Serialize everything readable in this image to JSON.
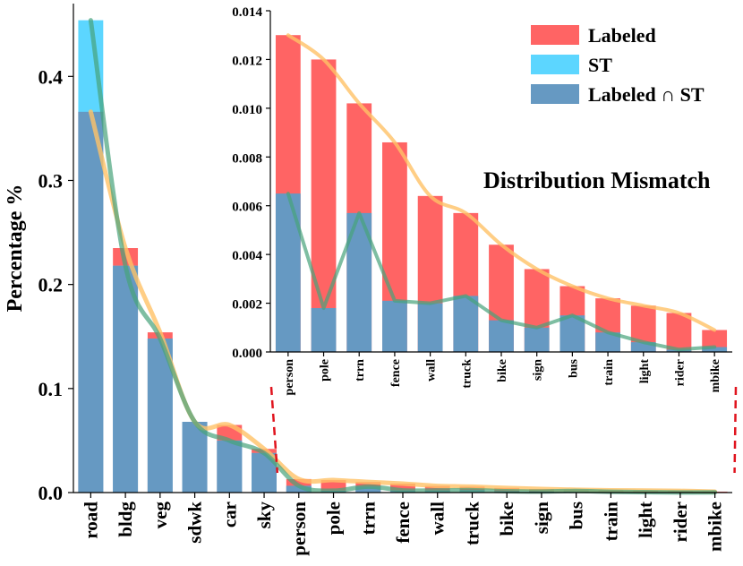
{
  "chart_data": [
    {
      "type": "bar",
      "role": "main",
      "ylabel": "Percentage %",
      "xlabel": "",
      "ylim": [
        0,
        0.47
      ],
      "yticks": [
        0.0,
        0.1,
        0.2,
        0.3,
        0.4
      ],
      "ytick_labels": [
        "0.0",
        "0.1",
        "0.2",
        "0.3",
        "0.4"
      ],
      "categories": [
        "road",
        "bldg",
        "veg",
        "sdwk",
        "car",
        "sky",
        "person",
        "pole",
        "trrn",
        "fence",
        "wall",
        "truck",
        "bike",
        "sign",
        "bus",
        "train",
        "light",
        "rider",
        "mbike"
      ],
      "series": [
        {
          "name": "Labeled",
          "values": [
            0.366,
            0.235,
            0.154,
            0.068,
            0.065,
            0.042,
            0.013,
            0.012,
            0.0102,
            0.0086,
            0.0064,
            0.0057,
            0.0044,
            0.0034,
            0.0027,
            0.0022,
            0.0019,
            0.0016,
            0.0009
          ]
        },
        {
          "name": "ST",
          "values": [
            0.454,
            0.218,
            0.148,
            0.068,
            0.05,
            0.038,
            0.0065,
            0.0018,
            0.0057,
            0.0021,
            0.002,
            0.0023,
            0.0013,
            0.001,
            0.0015,
            0.0008,
            0.0004,
            0.0001,
            0.0002
          ]
        },
        {
          "name": "Labeled ∩ ST",
          "values": [
            0.366,
            0.218,
            0.148,
            0.068,
            0.05,
            0.038,
            0.0065,
            0.0018,
            0.0057,
            0.0021,
            0.002,
            0.0023,
            0.0013,
            0.001,
            0.0015,
            0.0008,
            0.0004,
            0.0001,
            0.0002
          ]
        }
      ],
      "grid": false
    },
    {
      "type": "bar",
      "role": "inset",
      "title": "Distribution Mismatch",
      "ylim": [
        0,
        0.014
      ],
      "yticks": [
        0.0,
        0.002,
        0.004,
        0.006,
        0.008,
        0.01,
        0.012,
        0.014
      ],
      "ytick_labels": [
        "0.000",
        "0.002",
        "0.004",
        "0.006",
        "0.008",
        "0.010",
        "0.012",
        "0.014"
      ],
      "categories": [
        "person",
        "pole",
        "trrn",
        "fence",
        "wall",
        "truck",
        "bike",
        "sign",
        "bus",
        "train",
        "light",
        "rider",
        "mbike"
      ],
      "series": [
        {
          "name": "Labeled",
          "values": [
            0.013,
            0.012,
            0.0102,
            0.0086,
            0.0064,
            0.0057,
            0.0044,
            0.0034,
            0.0027,
            0.0022,
            0.0019,
            0.0016,
            0.0009
          ]
        },
        {
          "name": "Labeled ∩ ST",
          "values": [
            0.0065,
            0.0018,
            0.0057,
            0.0021,
            0.002,
            0.0023,
            0.0013,
            0.001,
            0.0015,
            0.0008,
            0.0004,
            0.0001,
            0.0002
          ]
        }
      ],
      "legend": {
        "position": "top-right",
        "entries": [
          {
            "label": "Labeled",
            "color": "#ff6464"
          },
          {
            "label": "ST",
            "color": "#5cd6ff"
          },
          {
            "label": "Labeled ∩ ST",
            "color": "#6699c2"
          }
        ]
      },
      "grid": false
    }
  ],
  "colors": {
    "labeled": "#ff6464",
    "st": "#5cd6ff",
    "intersection": "#6699c2",
    "labeled_line": "#ffc266",
    "st_line": "#47a27a",
    "connector": "#e0141e"
  }
}
